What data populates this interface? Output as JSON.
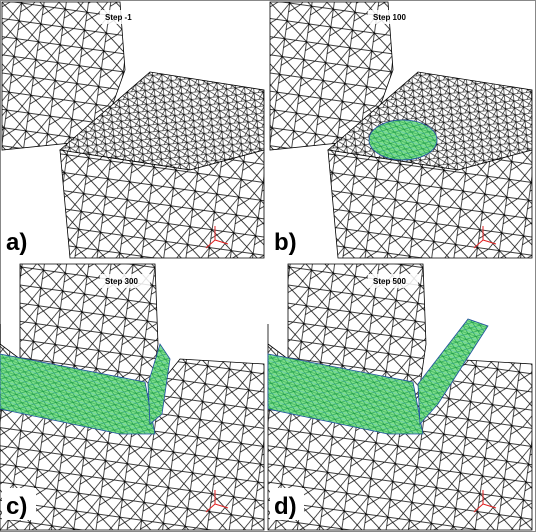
{
  "panels": [
    {
      "label": "a)",
      "step": "Step  -1"
    },
    {
      "label": "b)",
      "step": "Step 100"
    },
    {
      "label": "c)",
      "step": "Step 300"
    },
    {
      "label": "d)",
      "step": "Step 500"
    }
  ]
}
